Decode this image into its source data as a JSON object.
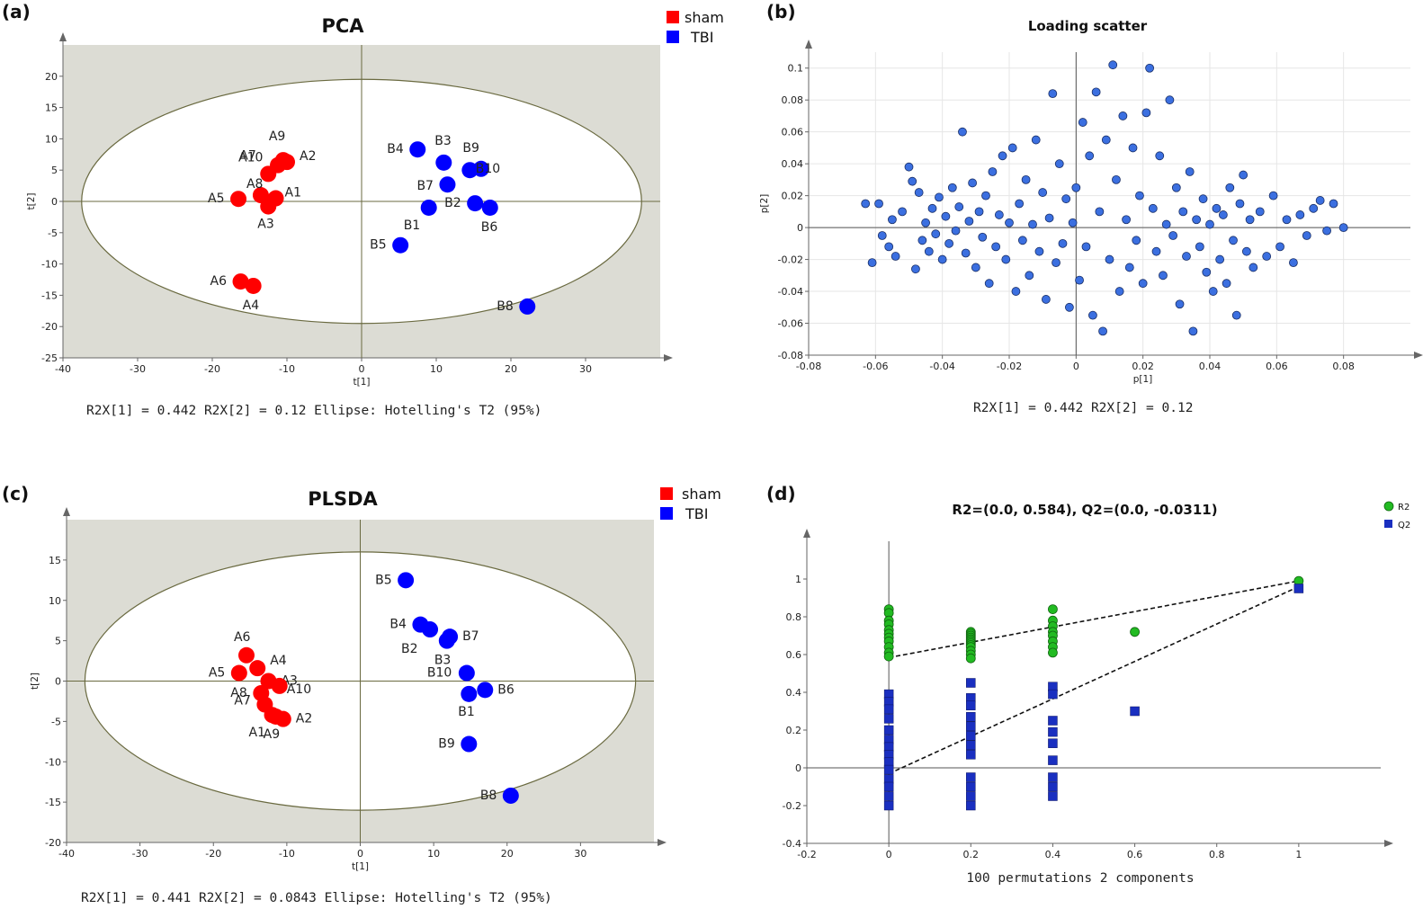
{
  "chart_data": [
    {
      "panel": "(a)",
      "type": "scatter",
      "title": "PCA",
      "xlabel": "t[1]",
      "ylabel": "t[2]",
      "xlim": [
        -40,
        40
      ],
      "ylim": [
        -25,
        25
      ],
      "xticks": [
        -40,
        -30,
        -20,
        -10,
        0,
        10,
        20,
        30
      ],
      "yticks": [
        -25,
        -20,
        -15,
        -10,
        -5,
        0,
        5,
        10,
        15,
        20
      ],
      "ellipse": {
        "rx": 37.5,
        "ry": 19.5
      },
      "legend": [
        "sham",
        "TBI"
      ],
      "footer": "R2X[1] = 0.442  R2X[2] = 0.12  Ellipse: Hotelling's T2 (95%)",
      "series": [
        {
          "name": "sham",
          "color": "#ff0000",
          "points": [
            {
              "label": "A1",
              "x": -11.5,
              "y": 0.5
            },
            {
              "label": "A2",
              "x": -10,
              "y": 6.3
            },
            {
              "label": "A3",
              "x": -12.5,
              "y": -0.8
            },
            {
              "label": "A4",
              "x": -14.5,
              "y": -13.5
            },
            {
              "label": "A5",
              "x": -16.5,
              "y": 0.4
            },
            {
              "label": "A6",
              "x": -16.2,
              "y": -12.8
            },
            {
              "label": "A7",
              "x": -12.5,
              "y": 4.4
            },
            {
              "label": "A8",
              "x": -13.5,
              "y": 1.0
            },
            {
              "label": "A9",
              "x": -10.5,
              "y": 6.6
            },
            {
              "label": "A10",
              "x": -11.2,
              "y": 5.8
            }
          ]
        },
        {
          "name": "TBI",
          "color": "#0000ff",
          "points": [
            {
              "label": "B1",
              "x": 9,
              "y": -1.0
            },
            {
              "label": "B2",
              "x": 15.2,
              "y": -0.3
            },
            {
              "label": "B3",
              "x": 11,
              "y": 6.2
            },
            {
              "label": "B4",
              "x": 7.5,
              "y": 8.3
            },
            {
              "label": "B5",
              "x": 5.2,
              "y": -7.0
            },
            {
              "label": "B6",
              "x": 17.2,
              "y": -1.0
            },
            {
              "label": "B7",
              "x": 11.5,
              "y": 2.7
            },
            {
              "label": "B8",
              "x": 22.2,
              "y": -16.8
            },
            {
              "label": "B9",
              "x": 14.5,
              "y": 5.0
            },
            {
              "label": "B10",
              "x": 16,
              "y": 5.2
            }
          ]
        }
      ]
    },
    {
      "panel": "(b)",
      "type": "scatter",
      "title": "Loading scatter",
      "xlabel": "p[1]",
      "ylabel": "p[2]",
      "xlim": [
        -0.08,
        0.1
      ],
      "ylim": [
        -0.08,
        0.11
      ],
      "xticks": [
        -0.08,
        -0.06,
        -0.04,
        -0.02,
        0,
        0.02,
        0.04,
        0.06,
        0.08
      ],
      "yticks": [
        -0.08,
        -0.06,
        -0.04,
        -0.02,
        0,
        0.02,
        0.04,
        0.06,
        0.08,
        0.1
      ],
      "footer": "R2X[1] = 0.442 R2X[2] = 0.12",
      "color": "#3b6fe0",
      "points": [
        [
          -0.063,
          0.015
        ],
        [
          -0.061,
          -0.022
        ],
        [
          -0.059,
          0.015
        ],
        [
          -0.058,
          -0.005
        ],
        [
          -0.056,
          -0.012
        ],
        [
          -0.055,
          0.005
        ],
        [
          -0.054,
          -0.018
        ],
        [
          -0.052,
          0.01
        ],
        [
          -0.05,
          0.038
        ],
        [
          -0.049,
          0.029
        ],
        [
          -0.048,
          -0.026
        ],
        [
          -0.047,
          0.022
        ],
        [
          -0.046,
          -0.008
        ],
        [
          -0.045,
          0.003
        ],
        [
          -0.044,
          -0.015
        ],
        [
          -0.043,
          0.012
        ],
        [
          -0.042,
          -0.004
        ],
        [
          -0.041,
          0.019
        ],
        [
          -0.04,
          -0.02
        ],
        [
          -0.039,
          0.007
        ],
        [
          -0.038,
          -0.01
        ],
        [
          -0.037,
          0.025
        ],
        [
          -0.036,
          -0.002
        ],
        [
          -0.035,
          0.013
        ],
        [
          -0.034,
          0.06
        ],
        [
          -0.033,
          -0.016
        ],
        [
          -0.032,
          0.004
        ],
        [
          -0.031,
          0.028
        ],
        [
          -0.03,
          -0.025
        ],
        [
          -0.029,
          0.01
        ],
        [
          -0.028,
          -0.006
        ],
        [
          -0.027,
          0.02
        ],
        [
          -0.026,
          -0.035
        ],
        [
          -0.025,
          0.035
        ],
        [
          -0.024,
          -0.012
        ],
        [
          -0.023,
          0.008
        ],
        [
          -0.022,
          0.045
        ],
        [
          -0.021,
          -0.02
        ],
        [
          -0.02,
          0.003
        ],
        [
          -0.019,
          0.05
        ],
        [
          -0.018,
          -0.04
        ],
        [
          -0.017,
          0.015
        ],
        [
          -0.016,
          -0.008
        ],
        [
          -0.015,
          0.03
        ],
        [
          -0.014,
          -0.03
        ],
        [
          -0.013,
          0.002
        ],
        [
          -0.012,
          0.055
        ],
        [
          -0.011,
          -0.015
        ],
        [
          -0.01,
          0.022
        ],
        [
          -0.009,
          -0.045
        ],
        [
          -0.008,
          0.006
        ],
        [
          -0.007,
          0.084
        ],
        [
          -0.006,
          -0.022
        ],
        [
          -0.005,
          0.04
        ],
        [
          -0.004,
          -0.01
        ],
        [
          -0.003,
          0.018
        ],
        [
          -0.002,
          -0.05
        ],
        [
          -0.001,
          0.003
        ],
        [
          0.0,
          0.025
        ],
        [
          0.001,
          -0.033
        ],
        [
          0.002,
          0.066
        ],
        [
          0.003,
          -0.012
        ],
        [
          0.004,
          0.045
        ],
        [
          0.005,
          -0.055
        ],
        [
          0.006,
          0.085
        ],
        [
          0.007,
          0.01
        ],
        [
          0.008,
          -0.065
        ],
        [
          0.009,
          0.055
        ],
        [
          0.01,
          -0.02
        ],
        [
          0.011,
          0.102
        ],
        [
          0.012,
          0.03
        ],
        [
          0.013,
          -0.04
        ],
        [
          0.014,
          0.07
        ],
        [
          0.015,
          0.005
        ],
        [
          0.016,
          -0.025
        ],
        [
          0.017,
          0.05
        ],
        [
          0.018,
          -0.008
        ],
        [
          0.019,
          0.02
        ],
        [
          0.02,
          -0.035
        ],
        [
          0.021,
          0.072
        ],
        [
          0.022,
          0.1
        ],
        [
          0.023,
          0.012
        ],
        [
          0.024,
          -0.015
        ],
        [
          0.025,
          0.045
        ],
        [
          0.026,
          -0.03
        ],
        [
          0.027,
          0.002
        ],
        [
          0.028,
          0.08
        ],
        [
          0.029,
          -0.005
        ],
        [
          0.03,
          0.025
        ],
        [
          0.031,
          -0.048
        ],
        [
          0.032,
          0.01
        ],
        [
          0.033,
          -0.018
        ],
        [
          0.034,
          0.035
        ],
        [
          0.035,
          -0.065
        ],
        [
          0.036,
          0.005
        ],
        [
          0.037,
          -0.012
        ],
        [
          0.038,
          0.018
        ],
        [
          0.039,
          -0.028
        ],
        [
          0.04,
          0.002
        ],
        [
          0.041,
          -0.04
        ],
        [
          0.042,
          0.012
        ],
        [
          0.043,
          -0.02
        ],
        [
          0.044,
          0.008
        ],
        [
          0.045,
          -0.035
        ],
        [
          0.046,
          0.025
        ],
        [
          0.047,
          -0.008
        ],
        [
          0.048,
          -0.055
        ],
        [
          0.049,
          0.015
        ],
        [
          0.05,
          0.033
        ],
        [
          0.051,
          -0.015
        ],
        [
          0.052,
          0.005
        ],
        [
          0.053,
          -0.025
        ],
        [
          0.055,
          0.01
        ],
        [
          0.057,
          -0.018
        ],
        [
          0.059,
          0.02
        ],
        [
          0.061,
          -0.012
        ],
        [
          0.063,
          0.005
        ],
        [
          0.065,
          -0.022
        ],
        [
          0.067,
          0.008
        ],
        [
          0.069,
          -0.005
        ],
        [
          0.071,
          0.012
        ],
        [
          0.073,
          0.017
        ],
        [
          0.075,
          -0.002
        ],
        [
          0.077,
          0.015
        ],
        [
          0.08,
          0.0
        ]
      ]
    },
    {
      "panel": "(c)",
      "type": "scatter",
      "title": "PLSDA",
      "xlabel": "t[1]",
      "ylabel": "t[2]",
      "xlim": [
        -40,
        40
      ],
      "ylim": [
        -20,
        20
      ],
      "xticks": [
        -40,
        -30,
        -20,
        -10,
        0,
        10,
        20,
        30
      ],
      "yticks": [
        -20,
        -15,
        -10,
        -5,
        0,
        5,
        10,
        15
      ],
      "ellipse": {
        "rx": 37.5,
        "ry": 16
      },
      "legend": [
        "sham",
        "TBI"
      ],
      "footer": "R2X[1] = 0.441  R2X[2] = 0.0843  Ellipse: Hotelling's T2 (95%)",
      "series": [
        {
          "name": "sham",
          "color": "#ff0000",
          "points": [
            {
              "label": "A1",
              "x": -12,
              "y": -4.2
            },
            {
              "label": "A2",
              "x": -10.5,
              "y": -4.7
            },
            {
              "label": "A3",
              "x": -12.5,
              "y": 0.0
            },
            {
              "label": "A4",
              "x": -14,
              "y": 1.6
            },
            {
              "label": "A5",
              "x": -16.5,
              "y": 1.0
            },
            {
              "label": "A6",
              "x": -15.5,
              "y": 3.2
            },
            {
              "label": "A7",
              "x": -13,
              "y": -2.9
            },
            {
              "label": "A8",
              "x": -13.5,
              "y": -1.5
            },
            {
              "label": "A9",
              "x": -11.5,
              "y": -4.4
            },
            {
              "label": "A10",
              "x": -11,
              "y": -0.6
            }
          ]
        },
        {
          "name": "TBI",
          "color": "#0000ff",
          "points": [
            {
              "label": "B1",
              "x": 14.8,
              "y": -1.6
            },
            {
              "label": "B2",
              "x": 9.5,
              "y": 6.4
            },
            {
              "label": "B3",
              "x": 11.8,
              "y": 5.0
            },
            {
              "label": "B4",
              "x": 8.2,
              "y": 7.0
            },
            {
              "label": "B5",
              "x": 6.2,
              "y": 12.5
            },
            {
              "label": "B6",
              "x": 17.0,
              "y": -1.1
            },
            {
              "label": "B7",
              "x": 12.2,
              "y": 5.5
            },
            {
              "label": "B8",
              "x": 20.5,
              "y": -14.2
            },
            {
              "label": "B9",
              "x": 14.8,
              "y": -7.8
            },
            {
              "label": "B10",
              "x": 14.5,
              "y": 1.0
            }
          ]
        }
      ]
    },
    {
      "panel": "(d)",
      "type": "scatter",
      "title": "R2=(0.0, 0.584), Q2=(0.0, -0.0311)",
      "xlabel": "100 permutations 2 components",
      "ylabel": "",
      "xlim": [
        -0.2,
        1.2
      ],
      "ylim": [
        -0.4,
        1.2
      ],
      "xticks": [
        -0.2,
        0,
        0.2,
        0.4,
        0.6,
        0.8,
        1
      ],
      "yticks": [
        -0.4,
        -0.2,
        0,
        0.2,
        0.4,
        0.6,
        0.8,
        1
      ],
      "legend": [
        "R2",
        "Q2"
      ],
      "series": [
        {
          "name": "R2",
          "color": "#22bb22",
          "marker": "circle",
          "points": [
            [
              0,
              0.84
            ],
            [
              0,
              0.82
            ],
            [
              0,
              0.78
            ],
            [
              0,
              0.76
            ],
            [
              0,
              0.73
            ],
            [
              0,
              0.71
            ],
            [
              0,
              0.69
            ],
            [
              0,
              0.67
            ],
            [
              0,
              0.64
            ],
            [
              0,
              0.61
            ],
            [
              0,
              0.59
            ],
            [
              0.2,
              0.72
            ],
            [
              0.2,
              0.71
            ],
            [
              0.2,
              0.7
            ],
            [
              0.2,
              0.69
            ],
            [
              0.2,
              0.68
            ],
            [
              0.2,
              0.67
            ],
            [
              0.2,
              0.66
            ],
            [
              0.2,
              0.65
            ],
            [
              0.2,
              0.64
            ],
            [
              0.2,
              0.62
            ],
            [
              0.2,
              0.6
            ],
            [
              0.2,
              0.58
            ],
            [
              0.4,
              0.84
            ],
            [
              0.4,
              0.78
            ],
            [
              0.4,
              0.75
            ],
            [
              0.4,
              0.72
            ],
            [
              0.4,
              0.7
            ],
            [
              0.4,
              0.67
            ],
            [
              0.4,
              0.64
            ],
            [
              0.4,
              0.61
            ],
            [
              0.6,
              0.72
            ],
            [
              1,
              0.99
            ]
          ]
        },
        {
          "name": "Q2",
          "color": "#1a2fc0",
          "marker": "square",
          "points": [
            [
              0,
              0.39
            ],
            [
              0,
              0.35
            ],
            [
              0,
              0.31
            ],
            [
              0,
              0.26
            ],
            [
              0,
              0.2
            ],
            [
              0,
              0.15
            ],
            [
              0,
              0.11
            ],
            [
              0,
              0.07
            ],
            [
              0,
              0.03
            ],
            [
              0,
              -0.01
            ],
            [
              0,
              -0.06
            ],
            [
              0,
              -0.1
            ],
            [
              0,
              -0.15
            ],
            [
              0,
              -0.2
            ],
            [
              0.2,
              0.45
            ],
            [
              0.2,
              0.37
            ],
            [
              0.2,
              0.33
            ],
            [
              0.2,
              0.27
            ],
            [
              0.2,
              0.22
            ],
            [
              0.2,
              0.17
            ],
            [
              0.2,
              0.12
            ],
            [
              0.2,
              0.07
            ],
            [
              0.2,
              -0.05
            ],
            [
              0.2,
              -0.1
            ],
            [
              0.2,
              -0.15
            ],
            [
              0.2,
              -0.2
            ],
            [
              0.4,
              0.43
            ],
            [
              0.4,
              0.39
            ],
            [
              0.4,
              0.25
            ],
            [
              0.4,
              0.19
            ],
            [
              0.4,
              0.13
            ],
            [
              0.4,
              0.04
            ],
            [
              0.4,
              -0.05
            ],
            [
              0.4,
              -0.1
            ],
            [
              0.4,
              -0.15
            ],
            [
              0.6,
              0.3
            ],
            [
              1,
              0.95
            ]
          ]
        }
      ],
      "regression": {
        "R2": [
          [
            0,
            0.584
          ],
          [
            1,
            0.99
          ]
        ],
        "Q2": [
          [
            0,
            -0.0311
          ],
          [
            1,
            0.96
          ]
        ]
      }
    }
  ]
}
